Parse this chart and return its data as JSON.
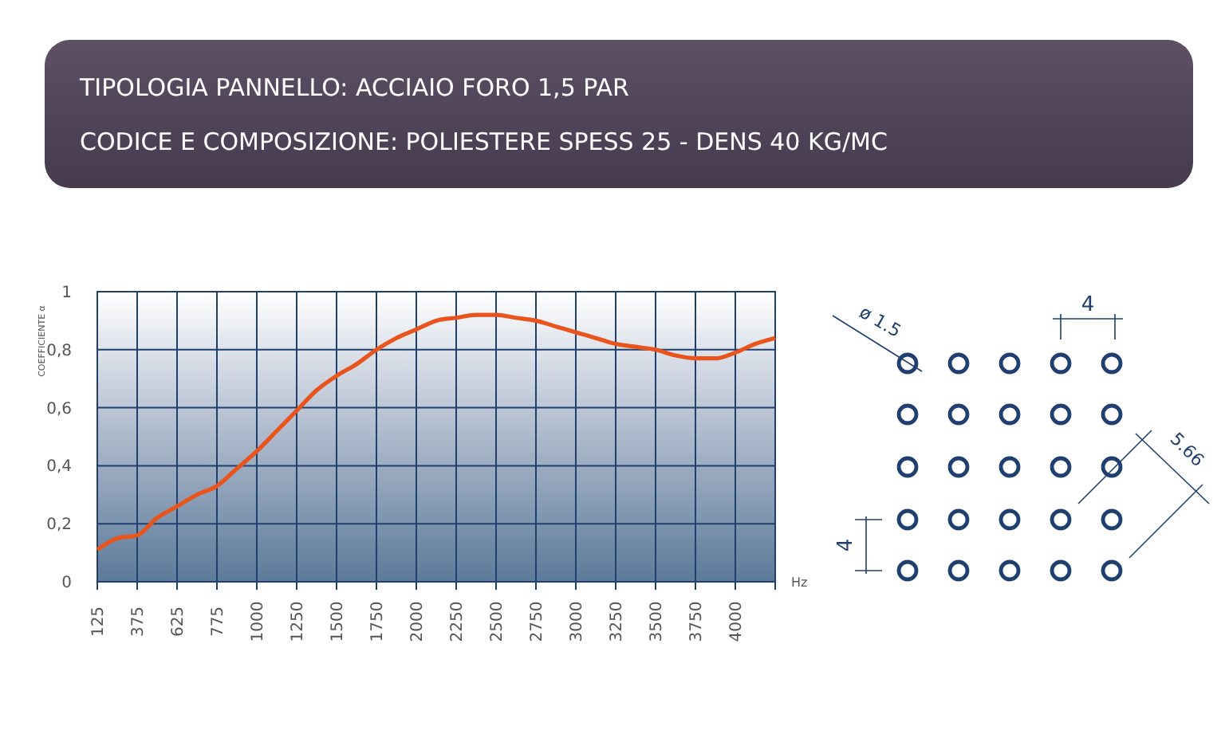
{
  "chart_data": {
    "type": "line",
    "title": "TIPOLOGIA PANNELLO: ACCIAIO FORO 1,5 PAR",
    "subtitle": "CODICE E COMPOSIZIONE: POLIESTERE SPESS 25 - DENS 40 KG/MC",
    "xlabel": "Hz",
    "ylabel": "COEFFICIENTE α",
    "categories": [
      "125",
      null,
      "375",
      null,
      "625",
      null,
      "775",
      null,
      "1000",
      null,
      "1250",
      null,
      "1500",
      null,
      "1750",
      null,
      "2000",
      null,
      "2250",
      null,
      "2500",
      null,
      "2750",
      null,
      "3000",
      null,
      "3250",
      null,
      "3500",
      null,
      "3750",
      null,
      "4000",
      null,
      null
    ],
    "series": [
      {
        "color": "#e8541c",
        "values": [
          0.11,
          0.15,
          0.16,
          0.22,
          0.26,
          0.3,
          0.33,
          0.39,
          0.45,
          0.52,
          0.59,
          0.66,
          0.71,
          0.75,
          0.8,
          0.84,
          0.87,
          0.9,
          0.91,
          0.92,
          0.92,
          0.91,
          0.9,
          0.88,
          0.86,
          0.84,
          0.82,
          0.81,
          0.8,
          0.78,
          0.77,
          0.77,
          0.79,
          0.82,
          0.84
        ]
      }
    ],
    "ylim": [
      0,
      1
    ],
    "yticks": [
      0,
      {
        "value": 0.2,
        "label": "0,2"
      },
      {
        "value": 0.4,
        "label": "0,4"
      },
      {
        "value": 0.6,
        "label": "0,6"
      },
      {
        "value": 0.8,
        "label": "0,8"
      },
      1
    ],
    "grid": true,
    "marker": "none",
    "line_style": "solid",
    "annotations": [
      "ø 1.5",
      "4",
      "5.66",
      "4"
    ]
  }
}
